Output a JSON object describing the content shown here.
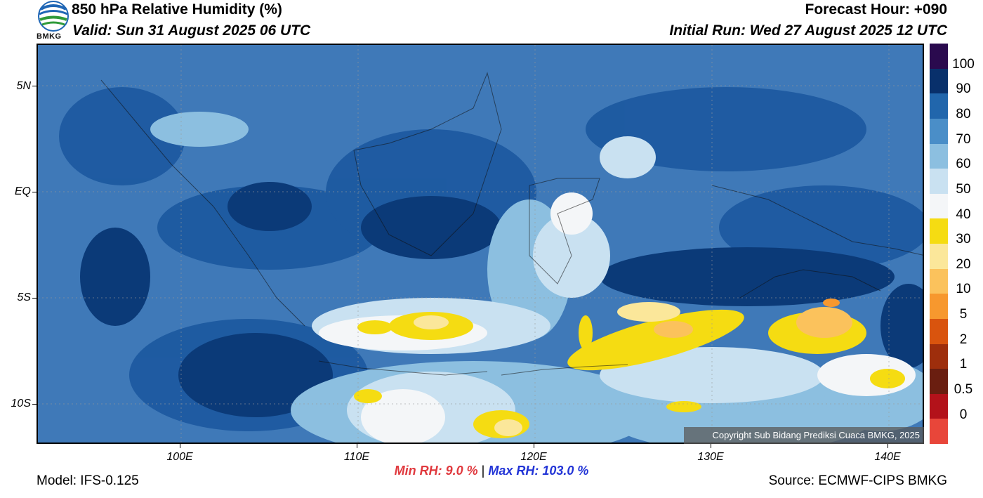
{
  "header": {
    "title": "850 hPa Relative Humidity (%)",
    "valid": "Valid: Sun 31 August 2025 06 UTC",
    "forecast_hour": "Forecast Hour: +090",
    "initial_run": "Initial Run: Wed 27 August 2025 12 UTC",
    "logo_text": "BMKG"
  },
  "map": {
    "lat_labels": [
      "5N",
      "EQ",
      "5S",
      "10S"
    ],
    "lon_labels": [
      "100E",
      "110E",
      "120E",
      "130E",
      "140E"
    ],
    "copyright": "Copyright Sub Bidang Prediksi Cuaca BMKG, 2025"
  },
  "colorbar": {
    "labels": [
      "100",
      "90",
      "80",
      "70",
      "60",
      "50",
      "40",
      "30",
      "20",
      "10",
      "5",
      "2",
      "1",
      "0.5",
      "0"
    ],
    "colors": [
      "#2a0a4e",
      "#08306b",
      "#2166ac",
      "#4a8ec8",
      "#8cbfe0",
      "#c9e1f1",
      "#f4f6f8",
      "#f5dc12",
      "#fbe79a",
      "#fbc25c",
      "#f7982e",
      "#d9540e",
      "#9e2e0c",
      "#6a1e10",
      "#b3121a",
      "#e8463a"
    ]
  },
  "footer": {
    "min_rh": "Min RH:   9.0 %",
    "separator": "|",
    "max_rh": "Max RH: 103.0 %",
    "model": "Model: IFS-0.125",
    "source": "Source: ECMWF-CIPS BMKG"
  }
}
